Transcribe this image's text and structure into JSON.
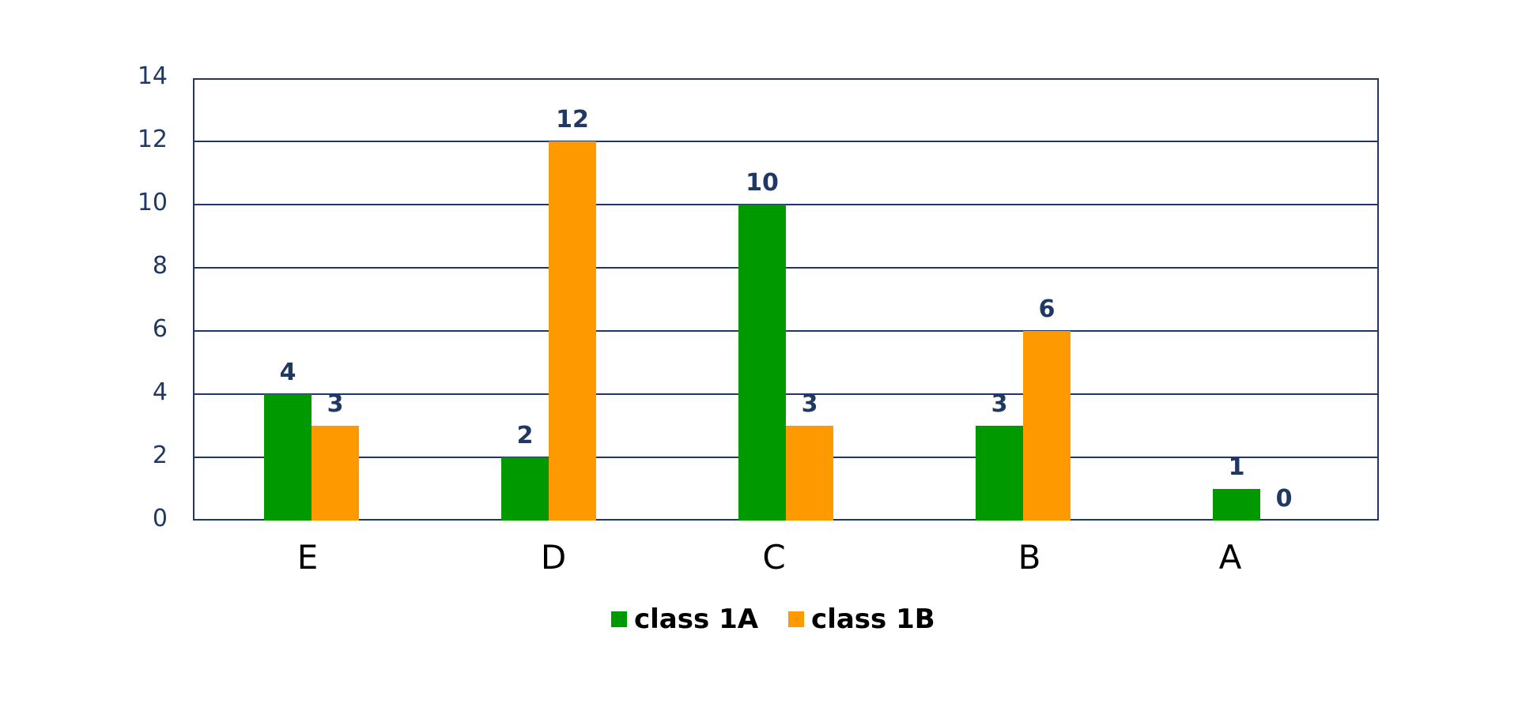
{
  "chart_data": {
    "type": "bar",
    "title": "",
    "xlabel": "",
    "ylabel": "",
    "categories": [
      "E",
      "D",
      "C",
      "B",
      "A"
    ],
    "series": [
      {
        "name": "class 1A",
        "color": "#009900",
        "values": [
          4,
          2,
          10,
          3,
          1
        ]
      },
      {
        "name": "class 1B",
        "color": "#ff9900",
        "values": [
          3,
          12,
          3,
          6,
          0
        ]
      }
    ],
    "ylim": [
      0,
      14
    ],
    "yticks": [
      "0",
      "2",
      "4",
      "6",
      "8",
      "10",
      "12",
      "14"
    ],
    "grid": true,
    "data_labels": true,
    "legend_position": "bottom"
  },
  "colors": {
    "axis": "#1f3864",
    "label": "#1f3864"
  }
}
